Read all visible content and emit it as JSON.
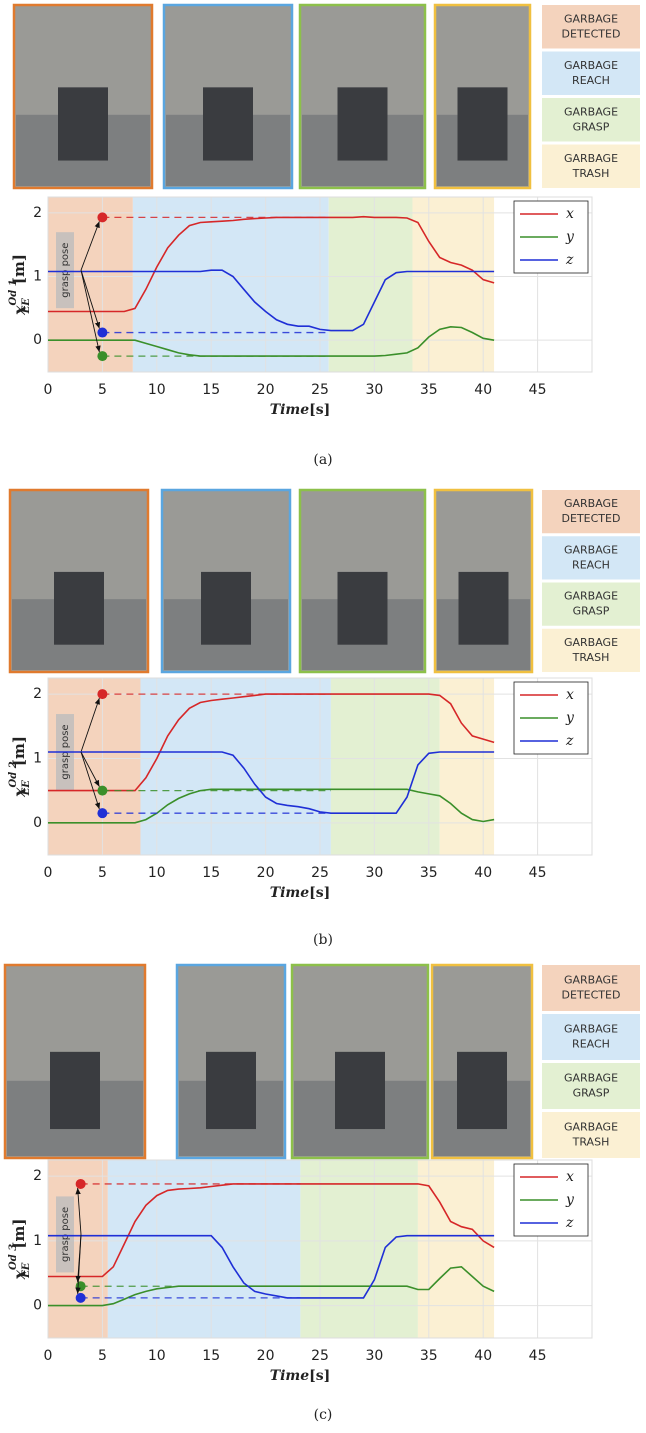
{
  "chart_data": [
    {
      "type": "line",
      "caption": "(a)",
      "ylabel": {
        "base": "x",
        "sub": "EE",
        "sup": "Od 1",
        "unit": "[m]"
      },
      "xlabel": {
        "base": "Time",
        "unit": "[s]"
      },
      "xlim": [
        0,
        50
      ],
      "ylim": [
        -0.5,
        2.25
      ],
      "xticks": [
        0,
        5,
        10,
        15,
        20,
        25,
        30,
        35,
        40,
        45
      ],
      "yticks": [
        0,
        1,
        2
      ],
      "grid": true,
      "legend": "upper right",
      "annotation": "grasp pose",
      "phases": [
        {
          "name": "GARBAGE DETECTED",
          "color": "#f4d3bd",
          "x": [
            0,
            7.8
          ]
        },
        {
          "name": "GARBAGE REACH",
          "color": "#d3e7f6",
          "x": [
            7.8,
            25.8
          ]
        },
        {
          "name": "GARBAGE GRASP",
          "color": "#e3f0d2",
          "x": [
            25.8,
            33.5
          ]
        },
        {
          "name": "GARBAGE TRASH",
          "color": "#fbf0d3",
          "x": [
            33.5,
            41
          ]
        }
      ],
      "x": [
        0,
        1,
        2,
        3,
        4,
        5,
        6,
        7,
        8,
        9,
        10,
        11,
        12,
        13,
        14,
        15,
        16,
        17,
        18,
        19,
        20,
        21,
        22,
        23,
        24,
        25,
        26,
        27,
        28,
        29,
        30,
        31,
        32,
        33,
        34,
        35,
        36,
        37,
        38,
        39,
        40,
        41
      ],
      "series": [
        {
          "name": "x",
          "color": "#d62728",
          "grasp_pose": 1.93,
          "values": [
            0.45,
            0.45,
            0.45,
            0.45,
            0.45,
            0.45,
            0.45,
            0.45,
            0.5,
            0.8,
            1.15,
            1.45,
            1.65,
            1.8,
            1.85,
            1.86,
            1.87,
            1.88,
            1.9,
            1.91,
            1.92,
            1.93,
            1.93,
            1.93,
            1.93,
            1.93,
            1.93,
            1.93,
            1.93,
            1.94,
            1.93,
            1.93,
            1.93,
            1.92,
            1.85,
            1.55,
            1.3,
            1.22,
            1.18,
            1.1,
            0.95,
            0.9
          ]
        },
        {
          "name": "y",
          "color": "#3a8f2a",
          "grasp_pose": -0.25,
          "values": [
            0,
            0,
            0,
            0,
            0,
            0,
            0,
            0,
            0,
            -0.05,
            -0.1,
            -0.15,
            -0.2,
            -0.23,
            -0.25,
            -0.25,
            -0.25,
            -0.25,
            -0.25,
            -0.25,
            -0.25,
            -0.25,
            -0.25,
            -0.25,
            -0.25,
            -0.25,
            -0.25,
            -0.25,
            -0.25,
            -0.25,
            -0.25,
            -0.24,
            -0.22,
            -0.2,
            -0.12,
            0.05,
            0.17,
            0.21,
            0.2,
            0.12,
            0.03,
            0
          ]
        },
        {
          "name": "z",
          "color": "#1f2fd6",
          "grasp_pose": 0.12,
          "values": [
            1.08,
            1.08,
            1.08,
            1.08,
            1.08,
            1.08,
            1.08,
            1.08,
            1.08,
            1.08,
            1.08,
            1.08,
            1.08,
            1.08,
            1.08,
            1.1,
            1.1,
            1.0,
            0.8,
            0.6,
            0.45,
            0.32,
            0.25,
            0.22,
            0.22,
            0.17,
            0.15,
            0.15,
            0.15,
            0.25,
            0.6,
            0.95,
            1.06,
            1.08,
            1.08,
            1.08,
            1.08,
            1.08,
            1.08,
            1.08,
            1.08,
            1.08
          ]
        }
      ],
      "grasp_x": 5
    },
    {
      "type": "line",
      "caption": "(b)",
      "ylabel": {
        "base": "x",
        "sub": "EE",
        "sup": "Od 2",
        "unit": "[m]"
      },
      "xlabel": {
        "base": "Time",
        "unit": "[s]"
      },
      "xlim": [
        0,
        50
      ],
      "ylim": [
        -0.5,
        2.25
      ],
      "xticks": [
        0,
        5,
        10,
        15,
        20,
        25,
        30,
        35,
        40,
        45
      ],
      "yticks": [
        0,
        1,
        2
      ],
      "grid": true,
      "legend": "upper right",
      "annotation": "grasp pose",
      "phases": [
        {
          "name": "GARBAGE DETECTED",
          "color": "#f4d3bd",
          "x": [
            0,
            8.5
          ]
        },
        {
          "name": "GARBAGE REACH",
          "color": "#d3e7f6",
          "x": [
            8.5,
            26
          ]
        },
        {
          "name": "GARBAGE GRASP",
          "color": "#e3f0d2",
          "x": [
            26,
            36
          ]
        },
        {
          "name": "GARBAGE TRASH",
          "color": "#fbf0d3",
          "x": [
            36,
            41
          ]
        }
      ],
      "x": [
        0,
        1,
        2,
        3,
        4,
        5,
        6,
        7,
        8,
        9,
        10,
        11,
        12,
        13,
        14,
        15,
        16,
        17,
        18,
        19,
        20,
        21,
        22,
        23,
        24,
        25,
        26,
        27,
        28,
        29,
        30,
        31,
        32,
        33,
        34,
        35,
        36,
        37,
        38,
        39,
        40,
        41
      ],
      "series": [
        {
          "name": "x",
          "color": "#d62728",
          "grasp_pose": 2.0,
          "values": [
            0.5,
            0.5,
            0.5,
            0.5,
            0.5,
            0.5,
            0.5,
            0.5,
            0.5,
            0.7,
            1.0,
            1.35,
            1.6,
            1.78,
            1.87,
            1.9,
            1.92,
            1.94,
            1.96,
            1.98,
            2.0,
            2.0,
            2.0,
            2.0,
            2.0,
            2.0,
            2.0,
            2.0,
            2.0,
            2.0,
            2.0,
            2.0,
            2.0,
            2.0,
            2.0,
            2.0,
            1.98,
            1.85,
            1.55,
            1.35,
            1.3,
            1.25
          ]
        },
        {
          "name": "y",
          "color": "#3a8f2a",
          "grasp_pose": 0.5,
          "values": [
            0,
            0,
            0,
            0,
            0,
            0,
            0,
            0,
            0,
            0.05,
            0.15,
            0.28,
            0.38,
            0.45,
            0.5,
            0.52,
            0.52,
            0.52,
            0.52,
            0.52,
            0.52,
            0.52,
            0.52,
            0.52,
            0.52,
            0.52,
            0.52,
            0.52,
            0.52,
            0.52,
            0.52,
            0.52,
            0.52,
            0.52,
            0.48,
            0.45,
            0.42,
            0.3,
            0.15,
            0.05,
            0.02,
            0.05
          ]
        },
        {
          "name": "z",
          "color": "#1f2fd6",
          "grasp_pose": 0.15,
          "values": [
            1.1,
            1.1,
            1.1,
            1.1,
            1.1,
            1.1,
            1.1,
            1.1,
            1.1,
            1.1,
            1.1,
            1.1,
            1.1,
            1.1,
            1.1,
            1.1,
            1.1,
            1.05,
            0.85,
            0.6,
            0.4,
            0.3,
            0.27,
            0.25,
            0.22,
            0.17,
            0.15,
            0.15,
            0.15,
            0.15,
            0.15,
            0.15,
            0.15,
            0.4,
            0.9,
            1.08,
            1.1,
            1.1,
            1.1,
            1.1,
            1.1,
            1.1
          ]
        }
      ],
      "grasp_x": 5
    },
    {
      "type": "line",
      "caption": "(c)",
      "ylabel": {
        "base": "x",
        "sub": "EE",
        "sup": "Od 3",
        "unit": "[m]"
      },
      "xlabel": {
        "base": "Time",
        "unit": "[s]"
      },
      "xlim": [
        0,
        50
      ],
      "ylim": [
        -0.5,
        2.25
      ],
      "xticks": [
        0,
        5,
        10,
        15,
        20,
        25,
        30,
        35,
        40,
        45
      ],
      "yticks": [
        0,
        1,
        2
      ],
      "grid": true,
      "legend": "upper right",
      "annotation": "grasp pose",
      "phases": [
        {
          "name": "GARBAGE DETECTED",
          "color": "#f4d3bd",
          "x": [
            0,
            5.5
          ]
        },
        {
          "name": "GARBAGE REACH",
          "color": "#d3e7f6",
          "x": [
            5.5,
            23.2
          ]
        },
        {
          "name": "GARBAGE GRASP",
          "color": "#e3f0d2",
          "x": [
            23.2,
            34
          ]
        },
        {
          "name": "GARBAGE TRASH",
          "color": "#fbf0d3",
          "x": [
            34,
            41
          ]
        }
      ],
      "x": [
        0,
        1,
        2,
        3,
        4,
        5,
        6,
        7,
        8,
        9,
        10,
        11,
        12,
        13,
        14,
        15,
        16,
        17,
        18,
        19,
        20,
        21,
        22,
        23,
        24,
        25,
        26,
        27,
        28,
        29,
        30,
        31,
        32,
        33,
        34,
        35,
        36,
        37,
        38,
        39,
        40,
        41
      ],
      "series": [
        {
          "name": "x",
          "color": "#d62728",
          "grasp_pose": 1.88,
          "values": [
            0.45,
            0.45,
            0.45,
            0.45,
            0.45,
            0.45,
            0.6,
            0.95,
            1.3,
            1.55,
            1.7,
            1.78,
            1.8,
            1.81,
            1.82,
            1.84,
            1.86,
            1.88,
            1.88,
            1.88,
            1.88,
            1.88,
            1.88,
            1.88,
            1.88,
            1.88,
            1.88,
            1.88,
            1.88,
            1.88,
            1.88,
            1.88,
            1.88,
            1.88,
            1.88,
            1.85,
            1.6,
            1.3,
            1.22,
            1.18,
            1.0,
            0.9
          ]
        },
        {
          "name": "y",
          "color": "#3a8f2a",
          "grasp_pose": 0.3,
          "values": [
            0,
            0,
            0,
            0,
            0,
            0,
            0.03,
            0.1,
            0.17,
            0.22,
            0.26,
            0.28,
            0.3,
            0.3,
            0.3,
            0.3,
            0.3,
            0.3,
            0.3,
            0.3,
            0.3,
            0.3,
            0.3,
            0.3,
            0.3,
            0.3,
            0.3,
            0.3,
            0.3,
            0.3,
            0.3,
            0.3,
            0.3,
            0.3,
            0.25,
            0.25,
            0.42,
            0.58,
            0.6,
            0.45,
            0.3,
            0.22
          ]
        },
        {
          "name": "z",
          "color": "#1f2fd6",
          "grasp_pose": 0.12,
          "values": [
            1.08,
            1.08,
            1.08,
            1.08,
            1.08,
            1.08,
            1.08,
            1.08,
            1.08,
            1.08,
            1.08,
            1.08,
            1.08,
            1.08,
            1.08,
            1.08,
            0.9,
            0.6,
            0.35,
            0.22,
            0.18,
            0.15,
            0.12,
            0.12,
            0.12,
            0.12,
            0.12,
            0.12,
            0.12,
            0.12,
            0.4,
            0.9,
            1.06,
            1.08,
            1.08,
            1.08,
            1.08,
            1.08,
            1.08,
            1.08,
            1.08,
            1.08
          ]
        }
      ],
      "grasp_x": 3
    }
  ]
}
